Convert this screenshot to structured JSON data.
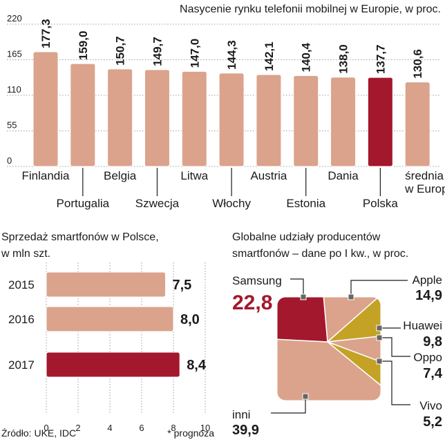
{
  "colors": {
    "bar": "#dba38c",
    "bar_stroke": "#ffffff",
    "highlight": "#a3182c",
    "gold": "#c4a226",
    "text": "#1a1a1a",
    "grid": "#9a9a9a",
    "marker": "#666666"
  },
  "chart_data": [
    {
      "type": "bar",
      "title": "Nasycenie rynku telefonii mobilnej w Europie, w proc.",
      "categories": [
        "Finlandia",
        "Portugalia",
        "Belgia",
        "Szwecja",
        "Litwa",
        "Włochy",
        "Austria",
        "Estonia",
        "Dania",
        "Polska",
        "średnia w Europie"
      ],
      "values": [
        177.3,
        159.0,
        150.7,
        149.7,
        147.0,
        144.3,
        142.1,
        140.4,
        138.0,
        137.7,
        130.6
      ],
      "value_labels": [
        "177,3",
        "159,0",
        "150,7",
        "149,7",
        "147,0",
        "144,3",
        "142,1",
        "140,4",
        "138,0",
        "137,7",
        "130,6"
      ],
      "category_label_lines": [
        [
          "Finlandia"
        ],
        [
          "Portugalia"
        ],
        [
          "Belgia"
        ],
        [
          "Szwecja"
        ],
        [
          "Litwa"
        ],
        [
          "Włochy"
        ],
        [
          "Austria"
        ],
        [
          "Estonia"
        ],
        [
          "Dania"
        ],
        [
          "Polska"
        ],
        [
          "średnia",
          "w Europie"
        ]
      ],
      "highlight": "Polska",
      "yticks": [
        0,
        55,
        110,
        165,
        220
      ],
      "ylim": [
        0,
        220
      ],
      "grid": true
    },
    {
      "type": "bar",
      "orientation": "horizontal",
      "title_lines": [
        "Sprzedaż smartfonów w Polsce,",
        "w mln szt."
      ],
      "categories": [
        "2015",
        "2016",
        "2017"
      ],
      "values": [
        7.5,
        8.0,
        8.4
      ],
      "value_labels": [
        "7,5",
        "8,0",
        "8,4"
      ],
      "highlight": "2017",
      "xticks": [
        0,
        2,
        4,
        6,
        8,
        10
      ],
      "xlim": [
        0,
        10
      ]
    },
    {
      "type": "pie",
      "title_lines": [
        "Globalne udziały producentów",
        "smartfonów – dane po I kw., w proc."
      ],
      "labels": [
        "Samsung",
        "Apple",
        "Huawei",
        "Oppo",
        "Vivo",
        "inni"
      ],
      "values": [
        22.8,
        14.9,
        9.8,
        7.4,
        5.2,
        39.9
      ],
      "value_labels": [
        "22,8",
        "14,9",
        "9,8",
        "7,4",
        "5,2",
        "39,9"
      ]
    }
  ],
  "footer": {
    "source": "Źródło: UKE, IDC",
    "note": "* prognoza"
  }
}
